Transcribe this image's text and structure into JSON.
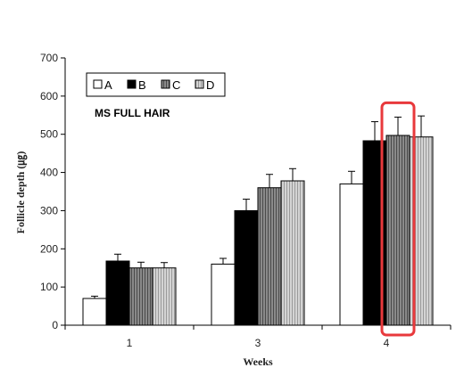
{
  "chart_data": {
    "type": "bar",
    "categories": [
      "1",
      "3",
      "4"
    ],
    "series": [
      {
        "name": "A",
        "values": [
          70,
          160,
          370
        ],
        "errors": [
          6,
          15,
          33
        ],
        "color": "#ffffff",
        "pattern": "none"
      },
      {
        "name": "B",
        "values": [
          168,
          300,
          483
        ],
        "errors": [
          18,
          30,
          50
        ],
        "color": "#000000",
        "pattern": "none"
      },
      {
        "name": "C",
        "values": [
          150,
          360,
          497
        ],
        "errors": [
          15,
          35,
          48
        ],
        "color": "#8a8a8a",
        "pattern": "vertical-stripes-dark"
      },
      {
        "name": "D",
        "values": [
          150,
          378,
          493
        ],
        "errors": [
          14,
          32,
          55
        ],
        "color": "#c8c8c8",
        "pattern": "vertical-stripes-light"
      }
    ],
    "title": "",
    "annotation": "MS FULL HAIR",
    "xlabel": "Weeks",
    "ylabel": "Follicle depth (㎍)",
    "ylim": [
      0,
      700
    ],
    "yticks": [
      "0",
      "100",
      "200",
      "300",
      "400",
      "500",
      "600",
      "700"
    ],
    "grid": false,
    "legend_position": "top-left",
    "highlight": {
      "category": "4",
      "series": "C",
      "color": "#e8393c"
    }
  }
}
